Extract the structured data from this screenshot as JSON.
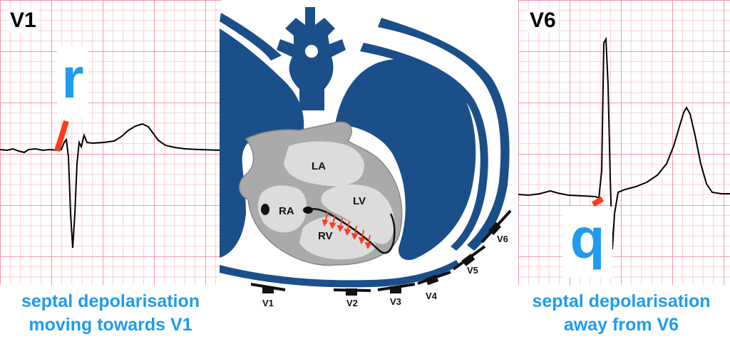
{
  "left": {
    "lead": "V1",
    "wave_letter": "r",
    "caption_line1": "septal depolarisation",
    "caption_line2": "moving towards V1"
  },
  "right": {
    "lead": "V6",
    "wave_letter": "q",
    "caption_line1": "septal depolarisation",
    "caption_line2": "away from V6"
  },
  "heart": {
    "chambers": {
      "la": "LA",
      "lv": "LV",
      "ra": "RA",
      "rv": "RV"
    },
    "leads": {
      "v1": "V1",
      "v2": "V2",
      "v3": "V3",
      "v4": "V4",
      "v5": "V5",
      "v6": "V6"
    }
  },
  "colors": {
    "grid_minor": "#fbd0d6",
    "grid_major": "#f29aa8",
    "caption_blue": "#1f9bf0",
    "lung_blue": "#1b4f8a",
    "heart_grey": "#aaaaaa",
    "chamber_grey": "#dcdcdc",
    "highlight_red": "#ff3b1f"
  }
}
